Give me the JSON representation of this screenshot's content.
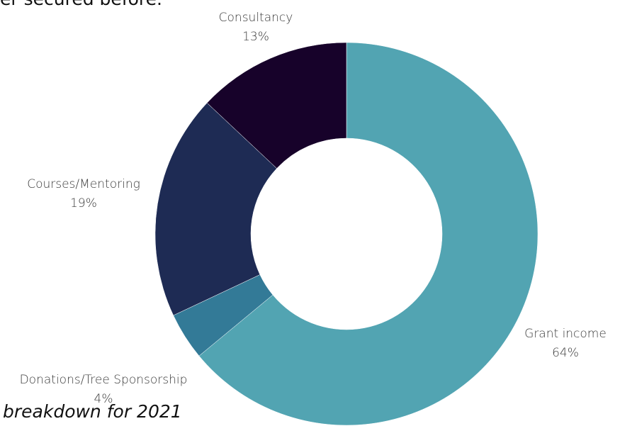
{
  "header_text": "er secured before.",
  "footer_text": "breakdown for 2021",
  "chart_data": {
    "type": "pie",
    "donut": true,
    "title": "",
    "slices": [
      {
        "label": "Grant income",
        "value": 64,
        "value_label": "64%",
        "color": "#52a4b2"
      },
      {
        "label": "Donations/Tree Sponsorship",
        "value": 4,
        "value_label": "4%",
        "color": "#337a97"
      },
      {
        "label": "Courses/Mentoring",
        "value": 19,
        "value_label": "19%",
        "color": "#1e2b54"
      },
      {
        "label": "Consultancy",
        "value": 13,
        "value_label": "13%",
        "color": "#17022a"
      }
    ]
  }
}
